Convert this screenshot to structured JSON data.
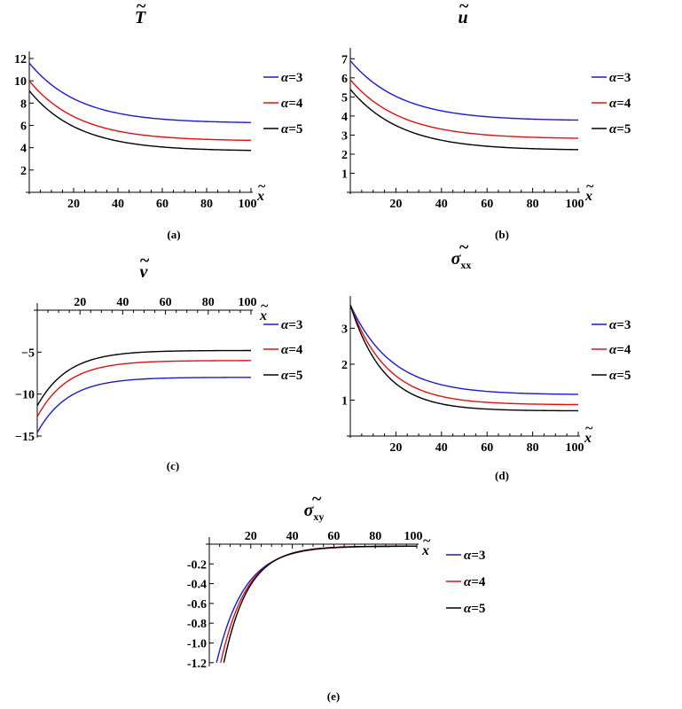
{
  "legend_prefix": "α=",
  "x_label": "x",
  "tilde": "~",
  "chart_data": [
    {
      "id": "a",
      "type": "line",
      "title": "T",
      "title_sub": "",
      "caption": "(a)",
      "x_ticks": [
        20,
        40,
        60,
        80,
        100
      ],
      "y_ticks": [
        2,
        4,
        6,
        8,
        10,
        12
      ],
      "xlim": [
        0,
        100
      ],
      "ylim": [
        0,
        12
      ],
      "x_axis_at": 0,
      "x_axis_label_pos": "bottom",
      "series": [
        {
          "name": "3",
          "color": "#1a1ad4",
          "start": 11.6,
          "end": 6.2,
          "rate": 0.045
        },
        {
          "name": "4",
          "color": "#e01010",
          "start": 10.0,
          "end": 4.6,
          "rate": 0.045
        },
        {
          "name": "5",
          "color": "#000000",
          "start": 9.1,
          "end": 3.7,
          "rate": 0.045
        }
      ]
    },
    {
      "id": "b",
      "type": "line",
      "title": "u",
      "title_sub": "",
      "caption": "(b)",
      "x_ticks": [
        20,
        40,
        60,
        80,
        100
      ],
      "y_ticks": [
        1,
        2,
        3,
        4,
        5,
        6,
        7
      ],
      "xlim": [
        0,
        100
      ],
      "ylim": [
        0,
        7.2
      ],
      "x_axis_at": 0,
      "x_axis_label_pos": "bottom",
      "series": [
        {
          "name": "3",
          "color": "#1a1ad4",
          "start": 6.9,
          "end": 3.75,
          "rate": 0.045
        },
        {
          "name": "4",
          "color": "#e01010",
          "start": 5.9,
          "end": 2.8,
          "rate": 0.045
        },
        {
          "name": "5",
          "color": "#000000",
          "start": 5.4,
          "end": 2.2,
          "rate": 0.045
        }
      ]
    },
    {
      "id": "c",
      "type": "line",
      "title": "v",
      "title_sub": "",
      "caption": "(c)",
      "x_ticks": [
        20,
        40,
        60,
        80,
        100
      ],
      "y_ticks": [
        -5,
        -10,
        -15
      ],
      "xlim": [
        0,
        100
      ],
      "ylim": [
        -15,
        0
      ],
      "x_axis_at": 0,
      "x_axis_label_pos": "top",
      "series": [
        {
          "name": "3",
          "color": "#1a1ad4",
          "start": -14.6,
          "end": -8.0,
          "rate": 0.07
        },
        {
          "name": "4",
          "color": "#e01010",
          "start": -12.7,
          "end": -6.0,
          "rate": 0.07
        },
        {
          "name": "5",
          "color": "#000000",
          "start": -11.4,
          "end": -4.8,
          "rate": 0.07
        }
      ]
    },
    {
      "id": "d",
      "type": "line",
      "title": "σ",
      "title_sub": "xx",
      "caption": "(d)",
      "x_ticks": [
        20,
        40,
        60,
        80,
        100
      ],
      "y_ticks": [
        1,
        2,
        3
      ],
      "xlim": [
        0,
        100
      ],
      "ylim": [
        0,
        3.7
      ],
      "x_axis_at": 0,
      "x_axis_label_pos": "bottom",
      "series": [
        {
          "name": "3",
          "color": "#1a1ad4",
          "start": 3.65,
          "end": 1.15,
          "rate": 0.055
        },
        {
          "name": "4",
          "color": "#e01010",
          "start": 3.65,
          "end": 0.87,
          "rate": 0.062
        },
        {
          "name": "5",
          "color": "#000000",
          "start": 3.65,
          "end": 0.7,
          "rate": 0.068
        }
      ]
    },
    {
      "id": "e",
      "type": "line",
      "title": "σ",
      "title_sub": "xy",
      "caption": "(e)",
      "x_ticks": [
        20,
        40,
        60,
        80,
        100
      ],
      "y_ticks": [
        -0.2,
        -0.4,
        -0.6,
        -0.8,
        -1.0,
        -1.2
      ],
      "y_tick_labels": [
        "-0.2",
        "-0.4",
        "-0.6",
        "-0.8",
        "-1.0",
        "-1.2"
      ],
      "xlim": [
        0,
        100
      ],
      "ylim": [
        -1.22,
        0
      ],
      "x_axis_at": 0,
      "x_axis_label_pos": "top",
      "series": [
        {
          "name": "3",
          "color": "#1a1ad4",
          "start_x": 3.5,
          "start": -1.2,
          "end": -0.02,
          "rate": 0.075
        },
        {
          "name": "4",
          "color": "#e01010",
          "start_x": 5.5,
          "start": -1.2,
          "end": -0.02,
          "rate": 0.08
        },
        {
          "name": "5",
          "color": "#000000",
          "start_x": 7.0,
          "start": -1.2,
          "end": -0.02,
          "rate": 0.085
        }
      ]
    }
  ]
}
